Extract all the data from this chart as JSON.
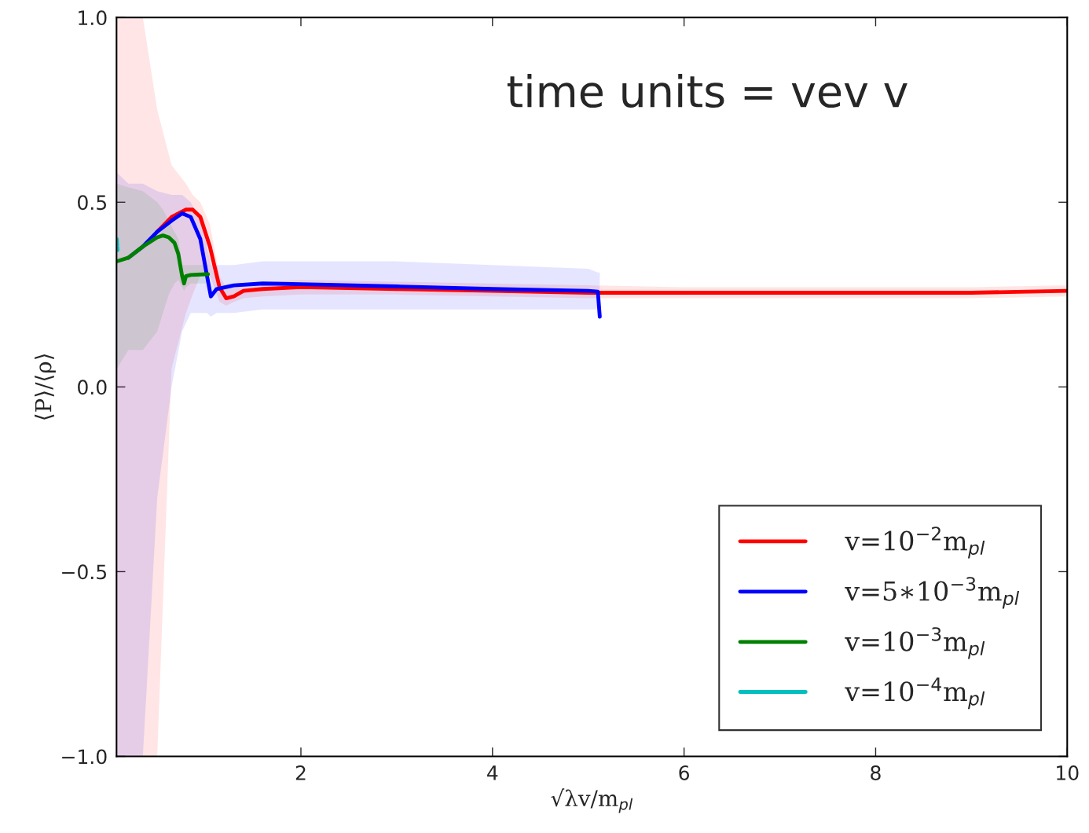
{
  "chart_data": {
    "type": "line",
    "xlabel": "√λv/m$_{pl}$",
    "ylabel": "⟨P⟩/⟨ρ⟩",
    "annotations": [
      "time units = vev v"
    ],
    "xlim": [
      0.075,
      10
    ],
    "xticks": [
      2,
      4,
      6,
      8,
      10
    ],
    "ylim": [
      -1.0,
      1.0
    ],
    "yticks": [
      {
        "value": -1.0,
        "label": "−1.0"
      },
      {
        "value": -0.5,
        "label": "−0.5"
      },
      {
        "value": 0.0,
        "label": "0.0"
      },
      {
        "value": 0.5,
        "label": "0.5"
      },
      {
        "value": 1.0,
        "label": "1.0"
      }
    ],
    "grid": false,
    "legend": "bottom right",
    "marker": "none",
    "line_style": "solid",
    "series": [
      {
        "name": "v=10$^{−2}$m$_{pl}$",
        "color": "#ff0000",
        "x": [
          0.08,
          0.2,
          0.35,
          0.5,
          0.65,
          0.8,
          0.87,
          0.95,
          1.05,
          1.15,
          1.22,
          1.3,
          1.4,
          1.6,
          2,
          3,
          4,
          5,
          6,
          7,
          8,
          9,
          10
        ],
        "values": [
          null,
          null,
          null,
          0.42,
          0.46,
          0.48,
          0.48,
          0.46,
          0.38,
          0.27,
          0.24,
          0.245,
          0.26,
          0.265,
          0.27,
          0.265,
          0.26,
          0.255,
          0.255,
          0.255,
          0.255,
          0.255,
          0.26
        ],
        "lower": [
          -1,
          -1,
          -1,
          -1,
          0.05,
          0.2,
          0.25,
          0.3,
          0.3,
          0.23,
          0.22,
          0.23,
          0.24,
          0.245,
          0.25,
          0.25,
          0.245,
          0.24,
          0.24,
          0.24,
          0.24,
          0.24,
          0.245
        ],
        "upper": [
          1,
          1,
          1,
          0.75,
          0.6,
          0.55,
          0.52,
          0.5,
          0.44,
          0.3,
          0.27,
          0.27,
          0.28,
          0.285,
          0.29,
          0.285,
          0.28,
          0.275,
          0.27,
          0.27,
          0.27,
          0.27,
          0.275
        ]
      },
      {
        "name": "v=5∗10$^{−3}$m$_{pl}$",
        "color": "#0000ff",
        "x": [
          0.08,
          0.2,
          0.35,
          0.5,
          0.65,
          0.76,
          0.85,
          0.95,
          1.02,
          1.06,
          1.12,
          1.3,
          1.6,
          2,
          3,
          4,
          5,
          5.1,
          5.12
        ],
        "values": [
          null,
          0.35,
          0.38,
          0.42,
          0.45,
          0.47,
          0.46,
          0.4,
          0.3,
          0.245,
          0.265,
          0.275,
          0.28,
          0.278,
          0.272,
          0.265,
          0.26,
          0.258,
          0.19
        ],
        "lower": [
          -1,
          -1,
          -1,
          -0.3,
          0.0,
          0.15,
          0.2,
          0.2,
          0.2,
          0.19,
          0.2,
          0.2,
          0.21,
          0.21,
          0.21,
          0.21,
          0.21,
          0.21,
          0.19
        ],
        "upper": [
          0.58,
          0.55,
          0.55,
          0.53,
          0.52,
          0.52,
          0.5,
          0.45,
          0.38,
          0.33,
          0.33,
          0.33,
          0.34,
          0.34,
          0.34,
          0.33,
          0.32,
          0.31,
          0.31
        ]
      },
      {
        "name": "v=10$^{−3}$m$_{pl}$",
        "color": "#008000",
        "x": [
          0.08,
          0.2,
          0.35,
          0.5,
          0.56,
          0.62,
          0.68,
          0.72,
          0.76,
          0.78,
          0.8,
          0.85,
          1.0,
          1.03
        ],
        "values": [
          0.34,
          0.35,
          0.38,
          0.405,
          0.41,
          0.405,
          0.39,
          0.36,
          0.3,
          0.28,
          0.3,
          0.303,
          0.305,
          0.305
        ],
        "lower": [
          0.05,
          0.1,
          0.1,
          0.15,
          0.2,
          0.25,
          0.28,
          0.29,
          0.27,
          0.26,
          0.27,
          0.28,
          0.28,
          0.28
        ],
        "upper": [
          0.55,
          0.54,
          0.53,
          0.5,
          0.48,
          0.45,
          0.42,
          0.4,
          0.33,
          0.33,
          0.33,
          0.33,
          0.33,
          0.33
        ]
      },
      {
        "name": "v=10$^{−4}$m$_{pl}$",
        "color": "#00bfbf",
        "x": [
          0.078,
          0.082,
          0.085
        ],
        "values": [
          0.4,
          0.38,
          0.37
        ]
      }
    ]
  }
}
